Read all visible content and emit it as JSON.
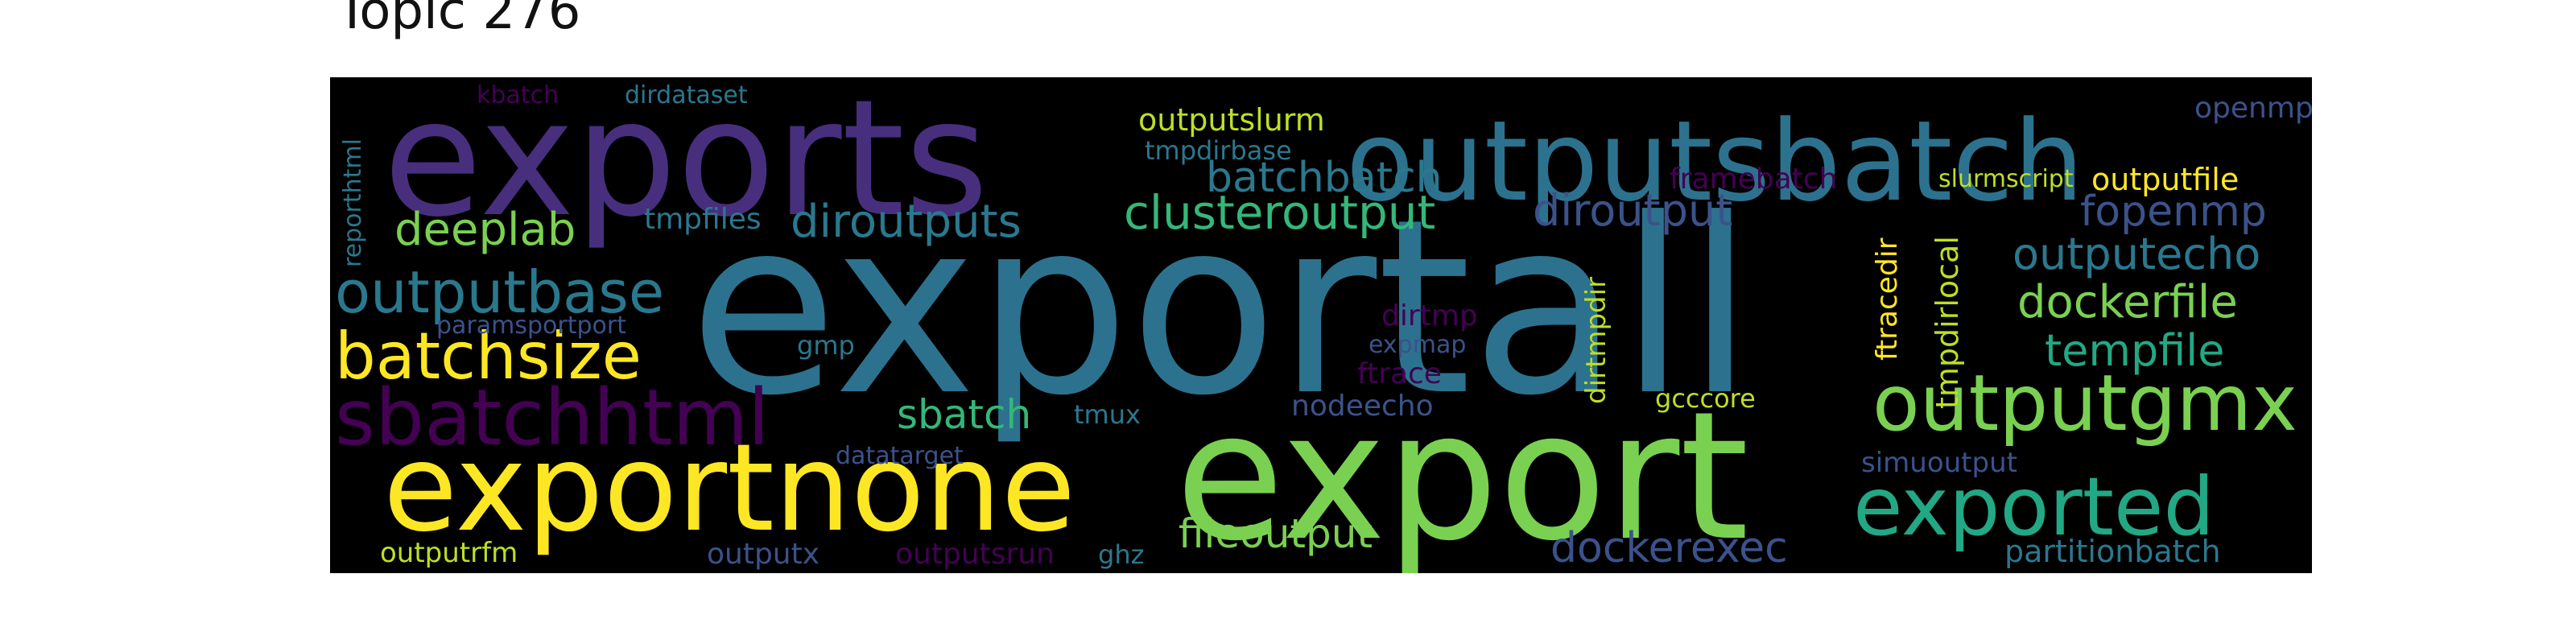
{
  "title": "Topic 276",
  "words": [
    {
      "text": "exportall",
      "color": "#2c728e"
    },
    {
      "text": "export",
      "color": "#7ad151"
    },
    {
      "text": "exports",
      "color": "#472f7d"
    },
    {
      "text": "exportnone",
      "color": "#fde725"
    },
    {
      "text": "outputsbatch",
      "color": "#2c728e"
    },
    {
      "text": "exported",
      "color": "#22a884"
    },
    {
      "text": "outputgmx",
      "color": "#7ad151"
    },
    {
      "text": "sbatchhtml",
      "color": "#440154"
    },
    {
      "text": "batchsize",
      "color": "#fde725"
    },
    {
      "text": "outputbase",
      "color": "#2a788e"
    },
    {
      "text": "dockerfile",
      "color": "#7ad151"
    },
    {
      "text": "outputecho",
      "color": "#2a788e"
    },
    {
      "text": "clusteroutput",
      "color": "#35b779"
    },
    {
      "text": "diroutputs",
      "color": "#2a788e"
    },
    {
      "text": "diroutput",
      "color": "#3b528b"
    },
    {
      "text": "tempfile",
      "color": "#22a884"
    },
    {
      "text": "fopenmp",
      "color": "#3b528b"
    },
    {
      "text": "batchbatch",
      "color": "#2a788e"
    },
    {
      "text": "dockerexec",
      "color": "#3b528b"
    },
    {
      "text": "fileoutput",
      "color": "#7ad151"
    },
    {
      "text": "deeplab",
      "color": "#7ad151"
    },
    {
      "text": "sbatch",
      "color": "#35b779"
    },
    {
      "text": "outputslurm",
      "color": "#bddf26"
    },
    {
      "text": "outputfile",
      "color": "#fde725"
    },
    {
      "text": "framebatch",
      "color": "#440154"
    },
    {
      "text": "partitionbatch",
      "color": "#2a788e"
    },
    {
      "text": "tmpdirlocal",
      "color": "#bddf26"
    },
    {
      "text": "ftracedir",
      "color": "#fde725"
    },
    {
      "text": "dirtmpdir",
      "color": "#bddf26"
    },
    {
      "text": "outputrfm",
      "color": "#bddf26"
    },
    {
      "text": "outputsrun",
      "color": "#440154"
    },
    {
      "text": "outputx",
      "color": "#3b528b"
    },
    {
      "text": "nodeecho",
      "color": "#3b528b"
    },
    {
      "text": "simuoutput",
      "color": "#3b528b"
    },
    {
      "text": "openmp",
      "color": "#3b528b"
    },
    {
      "text": "tmpfiles",
      "color": "#2a788e"
    },
    {
      "text": "tmpdirbase",
      "color": "#2a788e"
    },
    {
      "text": "reporthtml",
      "color": "#2a788e"
    },
    {
      "text": "dirtmp",
      "color": "#440154"
    },
    {
      "text": "ftrace",
      "color": "#440154"
    },
    {
      "text": "gcccore",
      "color": "#bddf26"
    },
    {
      "text": "slurmscript",
      "color": "#bddf26"
    },
    {
      "text": "tmux",
      "color": "#2a788e"
    },
    {
      "text": "ghz",
      "color": "#2a788e"
    },
    {
      "text": "gmp",
      "color": "#2a788e"
    },
    {
      "text": "expmap",
      "color": "#3b528b"
    },
    {
      "text": "datatarget",
      "color": "#3b528b"
    },
    {
      "text": "paramsportport",
      "color": "#3b528b"
    },
    {
      "text": "kbatch",
      "color": "#440154"
    },
    {
      "text": "dirdataset",
      "color": "#2a788e"
    }
  ]
}
